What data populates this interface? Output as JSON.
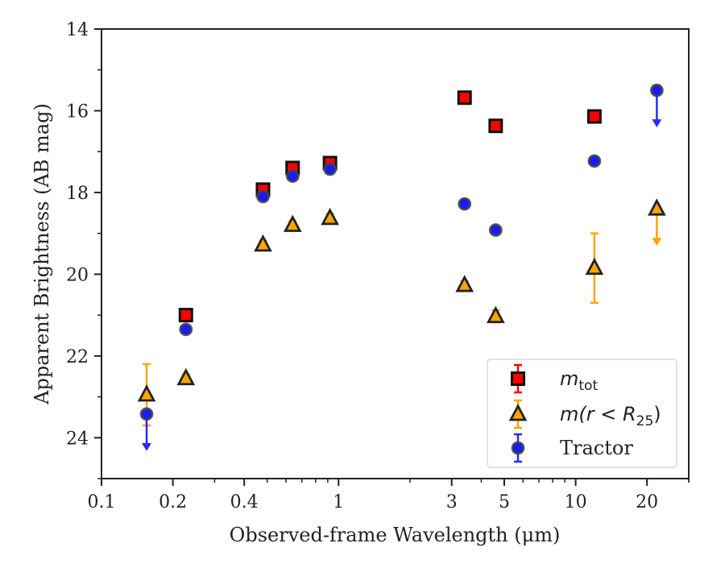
{
  "chart_data": {
    "type": "scatter",
    "xlabel": "Observed-frame Wavelength (μm)",
    "ylabel": "Apparent Brightness (AB mag)",
    "xscale": "log",
    "xlim": [
      0.1,
      30
    ],
    "ylim": [
      25,
      14
    ],
    "y_inverted": true,
    "xticks": [
      {
        "value": 0.1,
        "label": "0.1"
      },
      {
        "value": 0.2,
        "label": "0.2"
      },
      {
        "value": 0.4,
        "label": "0.4"
      },
      {
        "value": 1,
        "label": "1"
      },
      {
        "value": 3,
        "label": "3"
      },
      {
        "value": 5,
        "label": "5"
      },
      {
        "value": 10,
        "label": "10"
      },
      {
        "value": 20,
        "label": "20"
      }
    ],
    "yticks": [
      {
        "value": 14,
        "label": "14"
      },
      {
        "value": 16,
        "label": "16"
      },
      {
        "value": 18,
        "label": "18"
      },
      {
        "value": 20,
        "label": "20"
      },
      {
        "value": 22,
        "label": "22"
      },
      {
        "value": 24,
        "label": "24"
      }
    ],
    "grid": false,
    "legend_position": "bottom-right",
    "series": [
      {
        "name": "m_tot",
        "marker": "square",
        "color": "#ff0000",
        "edge": "#111111",
        "errcolor": "#ff0000",
        "points": [
          {
            "x": 0.227,
            "y": 21.0,
            "err": 0.1
          },
          {
            "x": 0.48,
            "y": 17.93,
            "err": 0.1
          },
          {
            "x": 0.64,
            "y": 17.4,
            "err": 0.1
          },
          {
            "x": 0.92,
            "y": 17.28,
            "err": 0.1
          },
          {
            "x": 3.4,
            "y": 15.68,
            "err": 0.05
          },
          {
            "x": 4.6,
            "y": 16.37,
            "err": 0.05
          },
          {
            "x": 12.0,
            "y": 16.14,
            "err": 0.05
          }
        ]
      },
      {
        "name": "m(r < R25)",
        "marker": "triangle",
        "color": "#ffa500",
        "edge": "#222222",
        "errcolor": "#ffa500",
        "points": [
          {
            "x": 0.155,
            "y": 22.95,
            "err": 0.75
          },
          {
            "x": 0.227,
            "y": 22.55,
            "err": 0.1
          },
          {
            "x": 0.48,
            "y": 19.28,
            "err": 0.1
          },
          {
            "x": 0.64,
            "y": 18.8,
            "err": 0.1
          },
          {
            "x": 0.92,
            "y": 18.63,
            "err": 0.1
          },
          {
            "x": 3.4,
            "y": 20.27,
            "err": 0.1
          },
          {
            "x": 4.6,
            "y": 21.03,
            "err": 0.15
          },
          {
            "x": 12.0,
            "y": 19.85,
            "err": 0.85
          },
          {
            "x": 22.0,
            "y": 18.4,
            "upper_limit": true
          }
        ]
      },
      {
        "name": "Tractor",
        "marker": "circle",
        "color": "#1a1aff",
        "edge": "#444444",
        "errcolor": "#2a2aff",
        "points": [
          {
            "x": 0.155,
            "y": 23.42,
            "upper_limit": true
          },
          {
            "x": 0.227,
            "y": 21.35,
            "err": 0.05
          },
          {
            "x": 0.48,
            "y": 18.1,
            "err": 0.05
          },
          {
            "x": 0.64,
            "y": 17.6,
            "err": 0.05
          },
          {
            "x": 0.92,
            "y": 17.43,
            "err": 0.05
          },
          {
            "x": 3.4,
            "y": 18.28,
            "err": 0.05
          },
          {
            "x": 4.6,
            "y": 18.92,
            "err": 0.05
          },
          {
            "x": 12.0,
            "y": 17.23,
            "err": 0.05
          },
          {
            "x": 22.0,
            "y": 15.5,
            "upper_limit": true
          }
        ]
      }
    ],
    "legend": [
      {
        "label_main": "m",
        "label_sub": "tot",
        "label_tail": ""
      },
      {
        "label_main": "m(r < R",
        "label_sub": "25",
        "label_tail": ")"
      },
      {
        "label_main": "Tractor",
        "label_sub": "",
        "label_tail": ""
      }
    ]
  }
}
